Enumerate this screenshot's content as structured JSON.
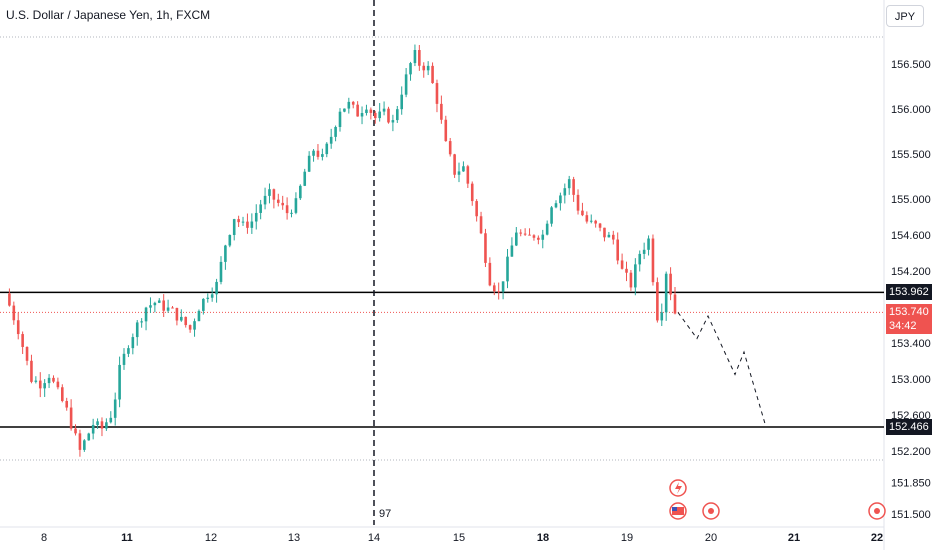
{
  "header": {
    "title": "U.S. Dollar / Japanese Yen, 1h, FXCM",
    "currency_button": "JPY"
  },
  "colors": {
    "up": "#26a69a",
    "down": "#ef5350",
    "line": "#000000",
    "tag_bg": "#131722",
    "price_bg": "#ef5350"
  },
  "annotations": {
    "session_marker_label": "97"
  },
  "price_tags": [
    {
      "value": 153.962,
      "label": "153.962",
      "style": "dark"
    },
    {
      "value": 153.74,
      "label": "153.740",
      "sub": "34:42",
      "style": "red"
    },
    {
      "value": 152.466,
      "label": "152.466",
      "style": "dark"
    }
  ],
  "icons": [
    "lightning-event-icon",
    "us-flag-event-icon",
    "event-dot-icon",
    "event-dot-icon",
    "event-dot-icon"
  ],
  "chart_data": {
    "type": "candlestick",
    "symbol": "U.S. Dollar / Japanese Yen",
    "interval": "1h",
    "source": "FXCM",
    "ylim": [
      151.4,
      157.0
    ],
    "y_ticks": [
      156.5,
      156.0,
      155.5,
      155.0,
      154.6,
      154.2,
      153.4,
      153.0,
      152.6,
      152.2,
      151.85,
      151.5
    ],
    "y_tick_labels": [
      "156.500",
      "156.000",
      "155.500",
      "155.000",
      "154.600",
      "154.200",
      "153.400",
      "153.000",
      "152.600",
      "152.200",
      "151.850",
      "151.500"
    ],
    "x_ticks": [
      "8",
      "11",
      "12",
      "13",
      "14",
      "15",
      "18",
      "19",
      "20",
      "21",
      "22"
    ],
    "horizontal_lines": [
      153.962,
      152.466
    ],
    "dotted_levels": [
      156.8,
      153.74,
      152.1
    ],
    "last_price": 153.74,
    "countdown": "34:42",
    "close_path": [
      [
        0,
        153.95
      ],
      [
        3,
        153.55
      ],
      [
        6,
        153.0
      ],
      [
        8,
        152.95
      ],
      [
        10,
        153.05
      ],
      [
        12,
        152.85
      ],
      [
        14,
        152.65
      ],
      [
        16,
        152.35
      ],
      [
        17,
        152.2
      ],
      [
        18,
        152.3
      ],
      [
        20,
        152.5
      ],
      [
        22,
        152.45
      ],
      [
        24,
        152.6
      ],
      [
        25,
        152.8
      ],
      [
        26,
        153.1
      ],
      [
        28,
        153.4
      ],
      [
        30,
        153.6
      ],
      [
        32,
        153.8
      ],
      [
        34,
        153.85
      ],
      [
        36,
        153.8
      ],
      [
        38,
        153.75
      ],
      [
        40,
        153.65
      ],
      [
        42,
        153.55
      ],
      [
        44,
        153.8
      ],
      [
        46,
        153.95
      ],
      [
        48,
        154.05
      ],
      [
        50,
        154.5
      ],
      [
        52,
        154.8
      ],
      [
        54,
        154.7
      ],
      [
        56,
        154.75
      ],
      [
        58,
        154.95
      ],
      [
        60,
        155.05
      ],
      [
        62,
        154.95
      ],
      [
        64,
        154.85
      ],
      [
        66,
        154.95
      ],
      [
        68,
        155.3
      ],
      [
        70,
        155.55
      ],
      [
        72,
        155.45
      ],
      [
        74,
        155.7
      ],
      [
        76,
        156.0
      ],
      [
        78,
        156.05
      ],
      [
        80,
        155.95
      ],
      [
        82,
        156.05
      ],
      [
        84,
        155.9
      ],
      [
        86,
        155.95
      ],
      [
        88,
        155.85
      ],
      [
        90,
        156.2
      ],
      [
        92,
        156.5
      ],
      [
        93,
        156.6
      ],
      [
        94,
        156.5
      ],
      [
        96,
        156.45
      ],
      [
        98,
        156.1
      ],
      [
        100,
        155.6
      ],
      [
        102,
        155.3
      ],
      [
        104,
        155.35
      ],
      [
        106,
        155.0
      ],
      [
        108,
        154.6
      ],
      [
        110,
        154.1
      ],
      [
        112,
        153.95
      ],
      [
        114,
        154.3
      ],
      [
        116,
        154.65
      ],
      [
        118,
        154.55
      ],
      [
        120,
        154.6
      ],
      [
        122,
        154.6
      ],
      [
        124,
        154.95
      ],
      [
        126,
        155.05
      ],
      [
        128,
        155.2
      ],
      [
        130,
        154.9
      ],
      [
        132,
        154.75
      ],
      [
        134,
        154.7
      ],
      [
        136,
        154.6
      ],
      [
        138,
        154.55
      ],
      [
        140,
        154.2
      ],
      [
        142,
        154.05
      ],
      [
        144,
        154.4
      ],
      [
        146,
        154.55
      ],
      [
        148,
        153.7
      ],
      [
        149,
        153.8
      ],
      [
        150,
        154.2
      ],
      [
        152,
        153.74
      ]
    ],
    "projection": [
      153.74,
      153.45,
      153.7,
      153.05,
      153.3,
      152.466
    ]
  }
}
